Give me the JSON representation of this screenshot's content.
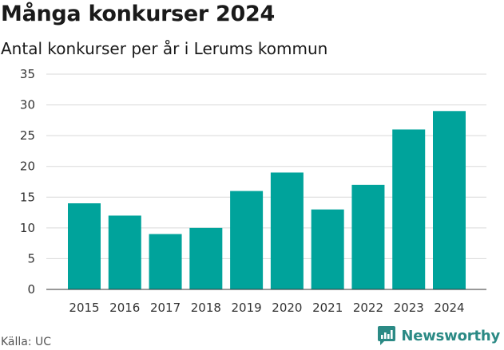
{
  "header": {
    "title": "Många konkurser 2024",
    "subtitle": "Antal konkurser per år i Lerums kommun"
  },
  "footer": {
    "source": "Källa: UC",
    "brand": "Newsworthy",
    "brand_icon": "newsworthy-logo-icon",
    "brand_color": "#2b8a85"
  },
  "colors": {
    "bar": "#00a39b",
    "grid": "#d9d9d9"
  },
  "chart_data": {
    "type": "bar",
    "title": "Många konkurser 2024",
    "subtitle": "Antal konkurser per år i Lerums kommun",
    "categories": [
      "2015",
      "2016",
      "2017",
      "2018",
      "2019",
      "2020",
      "2021",
      "2022",
      "2023",
      "2024"
    ],
    "values": [
      14,
      12,
      9,
      10,
      16,
      19,
      13,
      17,
      26,
      29
    ],
    "xlabel": "",
    "ylabel": "",
    "ylim": [
      0,
      35
    ],
    "yticks": [
      0,
      5,
      10,
      15,
      20,
      25,
      30,
      35
    ],
    "grid": true,
    "legend": "none"
  }
}
